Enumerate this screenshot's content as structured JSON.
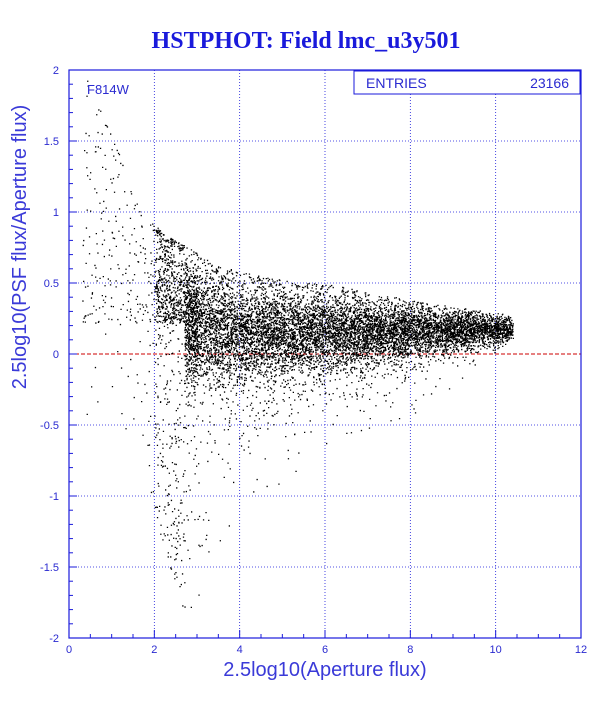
{
  "chart_data": {
    "type": "scatter",
    "title": "HSTPHOT: Field lmc_u3y501",
    "xlabel": "2.5log10(Aperture flux)",
    "ylabel": "2.5log10(PSF flux/Aperture flux)",
    "xlim": [
      0,
      12
    ],
    "ylim": [
      -2,
      2
    ],
    "x_ticks": [
      "0",
      "2",
      "4",
      "6",
      "8",
      "10",
      "12"
    ],
    "y_ticks": [
      "-2",
      "-1.5",
      "-1",
      "-0.5",
      "0",
      "0.5",
      "1",
      "1.5",
      "2"
    ],
    "grid": true,
    "reference_line": {
      "y": 0,
      "color": "#cc0000",
      "style": "dashed"
    },
    "annotation": "F814W",
    "stats_box": {
      "label": "ENTRIES",
      "value": "23166"
    },
    "point_color": "#000000",
    "axis_color": "#1a1adb",
    "distribution": {
      "ridge": [
        [
          2.8,
          0.22
        ],
        [
          3.5,
          0.18
        ],
        [
          4.0,
          0.15
        ],
        [
          5.0,
          0.15
        ],
        [
          6.0,
          0.15
        ],
        [
          7.0,
          0.16
        ],
        [
          8.0,
          0.16
        ],
        [
          9.0,
          0.17
        ],
        [
          10.3,
          0.18
        ]
      ],
      "envelope_upper": [
        [
          0.4,
          1.95
        ],
        [
          1.0,
          1.55
        ],
        [
          1.6,
          1.05
        ],
        [
          2.2,
          0.85
        ],
        [
          2.8,
          0.75
        ],
        [
          3.5,
          0.62
        ],
        [
          4.5,
          0.55
        ],
        [
          6.0,
          0.5
        ],
        [
          8.0,
          0.38
        ],
        [
          10.3,
          0.28
        ]
      ],
      "envelope_lower": [
        [
          1.6,
          -0.55
        ],
        [
          2.2,
          -1.4
        ],
        [
          2.8,
          -1.9
        ],
        [
          3.5,
          -1.6
        ],
        [
          4.0,
          -1.2
        ],
        [
          5.0,
          -0.9
        ],
        [
          6.0,
          -0.65
        ],
        [
          8.0,
          -0.45
        ],
        [
          10.3,
          0.08
        ]
      ]
    }
  }
}
